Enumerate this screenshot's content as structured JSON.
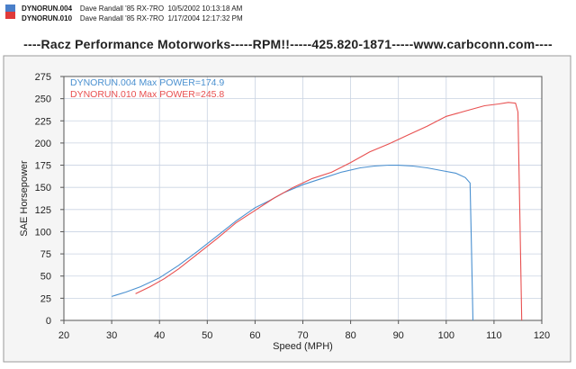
{
  "header": {
    "rows": [
      {
        "run": "DYNORUN.004",
        "driver": "Dave Randall",
        "car": "'85 RX-7RO",
        "datetime": "10/5/2002 10:13:18 AM",
        "color": "#4a7fc9"
      },
      {
        "run": "DYNORUN.010",
        "driver": "Dave Randall",
        "car": "'85 RX-7RO",
        "datetime": "1/17/2004 12:17:32 PM",
        "color": "#e03a3a"
      }
    ]
  },
  "banner": "----Racz Performance Motorworks-----RPM!!-----425.820-1871-----www.carbconn.com----",
  "chart_data": {
    "type": "line",
    "title": "",
    "xlabel": "Speed (MPH)",
    "ylabel": "SAE Horsepower",
    "xlim": [
      20,
      120
    ],
    "ylim": [
      0,
      275
    ],
    "xticks": [
      20,
      30,
      40,
      50,
      60,
      70,
      80,
      90,
      100,
      110,
      120
    ],
    "yticks": [
      0,
      25,
      50,
      75,
      100,
      125,
      150,
      175,
      200,
      225,
      250,
      275
    ],
    "grid": true,
    "legend_position": "top-left",
    "series": [
      {
        "name": "DYNORUN.004",
        "legend_text": "DYNORUN.004  Max POWER=174.9",
        "color": "#4a90d0",
        "x": [
          30,
          33,
          36,
          40,
          44,
          48,
          52,
          56,
          60,
          63,
          66,
          70,
          74,
          78,
          82,
          85,
          88,
          90,
          93,
          96,
          99,
          102,
          104,
          105,
          105.3,
          105.6
        ],
        "y": [
          27,
          32,
          38,
          48,
          62,
          78,
          95,
          112,
          127,
          135,
          144,
          153,
          160,
          167,
          172,
          174,
          175,
          174.9,
          174,
          172,
          169,
          166,
          161,
          155,
          80,
          0
        ]
      },
      {
        "name": "DYNORUN.010",
        "legend_text": "DYNORUN.010  Max POWER=245.8",
        "color": "#e85050",
        "x": [
          35,
          38,
          41,
          44,
          48,
          52,
          56,
          60,
          64,
          68,
          72,
          76,
          80,
          84,
          88,
          92,
          96,
          100,
          104,
          108,
          111,
          113,
          114.5,
          115,
          115.4,
          115.8
        ],
        "y": [
          30,
          38,
          47,
          58,
          75,
          92,
          110,
          124,
          138,
          150,
          160,
          167,
          178,
          190,
          199,
          209,
          219,
          230,
          236,
          242,
          244,
          245.8,
          245,
          235,
          120,
          0
        ]
      }
    ]
  }
}
